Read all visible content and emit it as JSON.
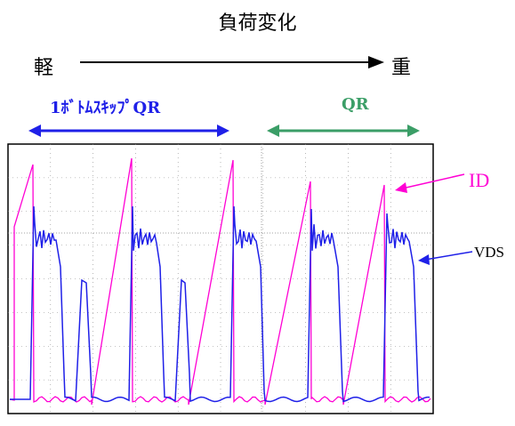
{
  "title": "負荷変化",
  "load_axis": {
    "light_label": "軽",
    "heavy_label": "重"
  },
  "modes": [
    {
      "label": "1ﾎﾞﾄﾑｽｷｯﾌﾟQR",
      "color": "#1f20e8"
    },
    {
      "label": "QR",
      "color": "#3b9e67"
    }
  ],
  "signals": [
    {
      "label": "ID",
      "color": "#ff00d4"
    },
    {
      "label": "VDS",
      "color": "#1f20e8"
    }
  ],
  "colors": {
    "grid": "#888888",
    "frame": "#000000",
    "background": "#ffffff"
  }
}
